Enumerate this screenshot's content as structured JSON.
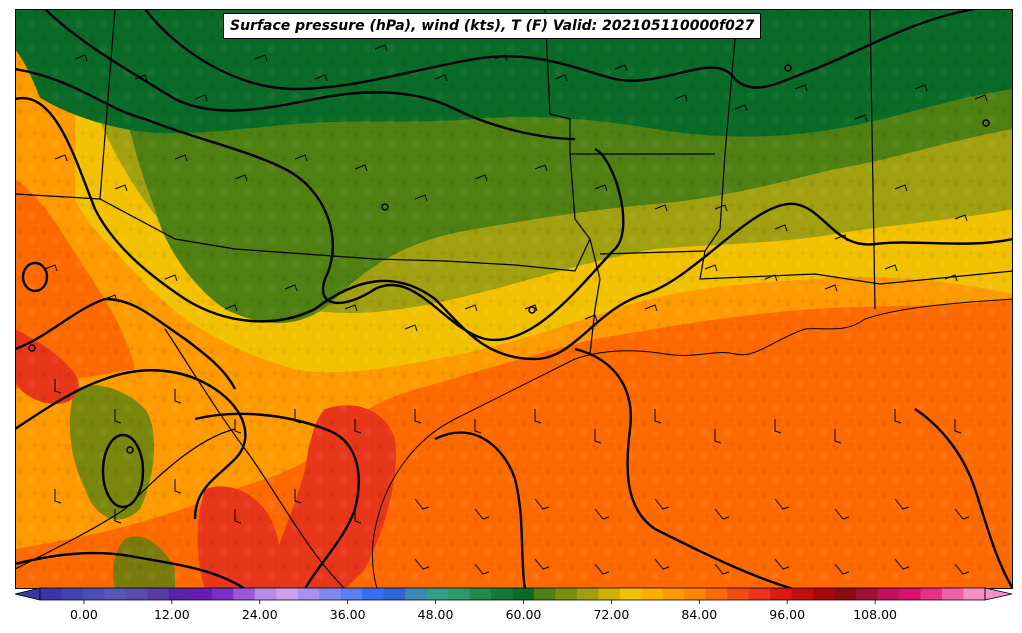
{
  "title": "Surface pressure (hPa), wind (kts), T (F) Valid: 202105110000f027",
  "colorbar": {
    "ticks": [
      "0.00",
      "12.00",
      "24.00",
      "36.00",
      "48.00",
      "60.00",
      "72.00",
      "84.00",
      "96.00",
      "108.00"
    ],
    "min": -6,
    "max": 123,
    "step": 3
  },
  "colors": {
    "hot_red": "#e8361a",
    "orange": "#ff6a00",
    "light_orange": "#ff9a00",
    "yellow": "#f2c200",
    "olive": "#a0a010",
    "green": "#4e8012",
    "dark_green": "#0a6a28"
  }
}
